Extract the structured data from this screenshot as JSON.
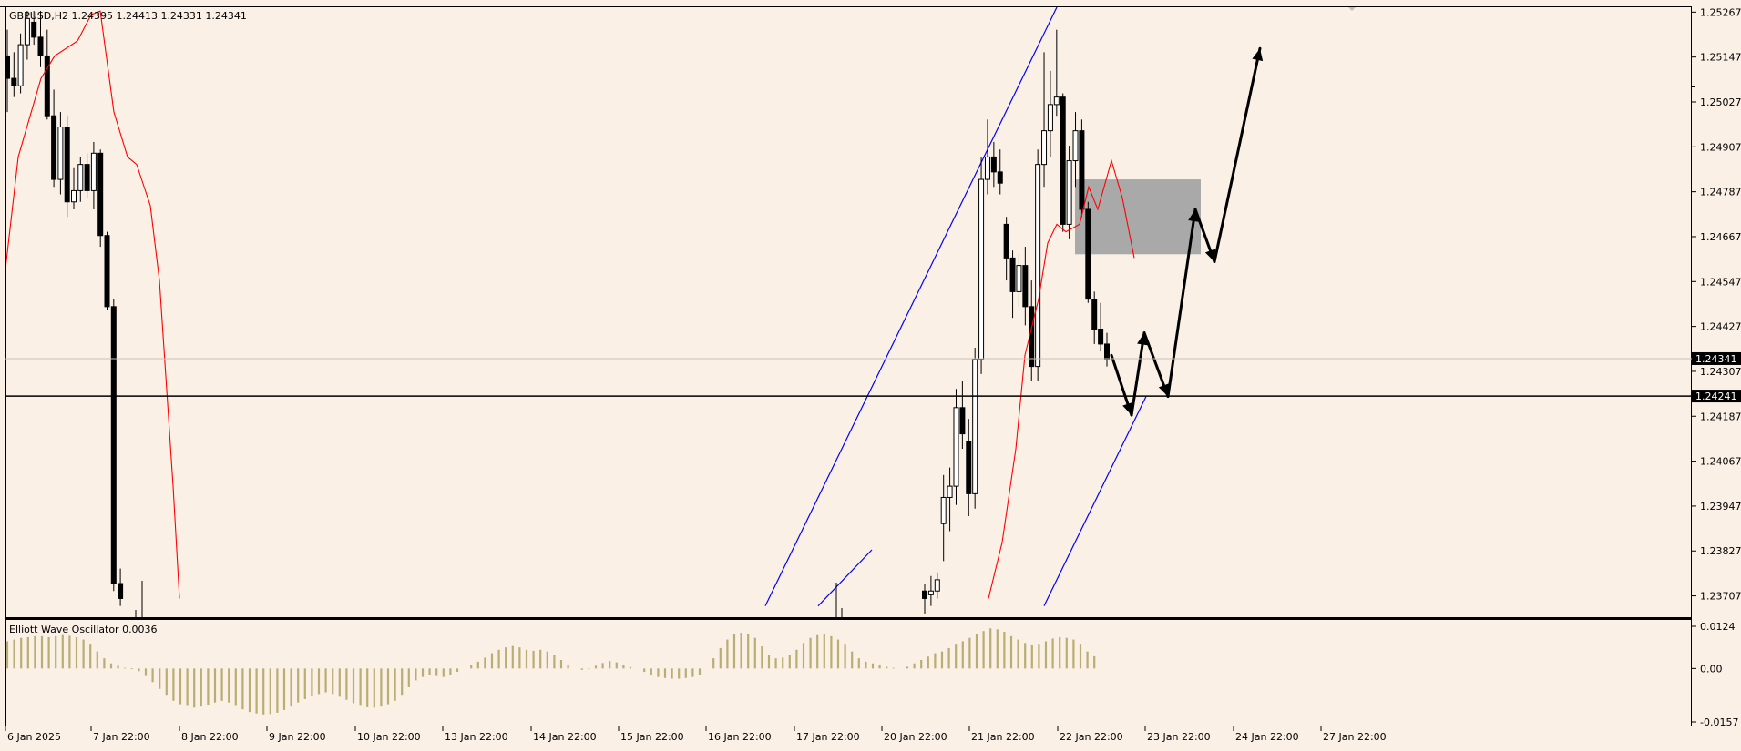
{
  "header": {
    "symbol_info": "GBPUSD,H2 1.24395 1.24413 1.24331 1.24341"
  },
  "indicator": {
    "label": "Elliott Wave Oscillator 0.0036"
  },
  "chart_data": [
    {
      "type": "candlestick",
      "symbol": "GBPUSD",
      "timeframe": "H2",
      "ohlc_last": {
        "open": 1.24395,
        "high": 1.24413,
        "low": 1.24331,
        "close": 1.24341
      },
      "y_ticks": [
        "1.25267",
        "1.25147",
        "1.25027",
        "1.24907",
        "1.24787",
        "1.24667",
        "1.24547",
        "1.24427",
        "1.24307",
        "1.24187",
        "1.24067",
        "1.23947",
        "1.23827",
        "1.23707"
      ],
      "ylim": [
        1.2365,
        1.2528
      ],
      "x_ticks": [
        "6 Jan 2025",
        "7 Jan 22:00",
        "8 Jan 22:00",
        "9 Jan 22:00",
        "10 Jan 22:00",
        "13 Jan 22:00",
        "14 Jan 22:00",
        "15 Jan 22:00",
        "16 Jan 22:00",
        "17 Jan 22:00",
        "20 Jan 22:00",
        "21 Jan 22:00",
        "22 Jan 22:00",
        "23 Jan 22:00",
        "24 Jan 22:00",
        "27 Jan 22:00"
      ],
      "price_labels": {
        "current": "1.24341",
        "horizontal_line": "1.24241"
      },
      "horizontal_line": 1.24241,
      "current_price": 1.24341,
      "candles": [
        [
          1.2515,
          1.2522,
          1.25,
          1.2509
        ],
        [
          1.2509,
          1.2516,
          1.2504,
          1.2507
        ],
        [
          1.2507,
          1.2521,
          1.2505,
          1.2518
        ],
        [
          1.2518,
          1.2527,
          1.2514,
          1.2525
        ],
        [
          1.2524,
          1.2527,
          1.2518,
          1.252
        ],
        [
          1.252,
          1.2527,
          1.2512,
          1.2515
        ],
        [
          1.2515,
          1.2522,
          1.2498,
          1.2499
        ],
        [
          1.2499,
          1.2506,
          1.248,
          1.2482
        ],
        [
          1.2482,
          1.25,
          1.2478,
          1.2496
        ],
        [
          1.2496,
          1.2499,
          1.2472,
          1.2476
        ],
        [
          1.2476,
          1.2485,
          1.2474,
          1.2479
        ],
        [
          1.2479,
          1.2488,
          1.2476,
          1.2486
        ],
        [
          1.2486,
          1.2489,
          1.2477,
          1.2479
        ],
        [
          1.2479,
          1.2492,
          1.2474,
          1.2489
        ],
        [
          1.2489,
          1.249,
          1.2464,
          1.2467
        ],
        [
          1.2467,
          1.2468,
          1.2447,
          1.2448
        ],
        [
          1.2448,
          1.245,
          1.2372,
          1.2374
        ],
        [
          1.2374,
          1.2378,
          1.2368,
          1.237
        ]
      ],
      "late_candles": [
        [
          1.2372,
          1.2374,
          1.2366,
          1.237
        ],
        [
          1.2371,
          1.2376,
          1.2368,
          1.2372
        ],
        [
          1.2372,
          1.2377,
          1.237,
          1.2375
        ],
        [
          1.239,
          1.2403,
          1.238,
          1.2397
        ],
        [
          1.2397,
          1.2405,
          1.2388,
          1.24
        ],
        [
          1.24,
          1.2426,
          1.2395,
          1.2421
        ],
        [
          1.2421,
          1.2428,
          1.241,
          1.2414
        ],
        [
          1.2412,
          1.2418,
          1.2392,
          1.2398
        ],
        [
          1.2398,
          1.2437,
          1.2394,
          1.2434
        ],
        [
          1.2434,
          1.2488,
          1.243,
          1.2482
        ],
        [
          1.2482,
          1.2498,
          1.2478,
          1.2488
        ],
        [
          1.2488,
          1.2492,
          1.248,
          1.2484
        ],
        [
          1.2484,
          1.249,
          1.2478,
          1.2481
        ],
        [
          1.247,
          1.2472,
          1.2455,
          1.2461
        ],
        [
          1.2461,
          1.2463,
          1.2445,
          1.2452
        ],
        [
          1.2452,
          1.2462,
          1.2448,
          1.2459
        ],
        [
          1.2459,
          1.2464,
          1.2443,
          1.2448
        ],
        [
          1.2448,
          1.2455,
          1.2428,
          1.2432
        ],
        [
          1.2432,
          1.249,
          1.2428,
          1.2486
        ],
        [
          1.2486,
          1.2516,
          1.248,
          1.2495
        ],
        [
          1.2495,
          1.2511,
          1.2488,
          1.2502
        ],
        [
          1.2502,
          1.2522,
          1.2499,
          1.2504
        ],
        [
          1.2504,
          1.2505,
          1.2468,
          1.247
        ],
        [
          1.247,
          1.2491,
          1.2466,
          1.2487
        ],
        [
          1.2487,
          1.25,
          1.248,
          1.2495
        ],
        [
          1.2495,
          1.2498,
          1.2472,
          1.2474
        ],
        [
          1.2474,
          1.2476,
          1.2449,
          1.245
        ],
        [
          1.245,
          1.2452,
          1.2438,
          1.2442
        ],
        [
          1.2442,
          1.2449,
          1.2436,
          1.2438
        ],
        [
          1.2438,
          1.2441,
          1.2432,
          1.2434
        ]
      ],
      "moving_average": [
        [
          5,
          1.2456
        ],
        [
          20,
          1.2488
        ],
        [
          45,
          1.2509
        ],
        [
          60,
          1.2515
        ],
        [
          85,
          1.2519
        ],
        [
          100,
          1.2526
        ],
        [
          110,
          1.2527
        ],
        [
          125,
          1.25
        ],
        [
          140,
          1.2488
        ],
        [
          150,
          1.2486
        ],
        [
          165,
          1.2475
        ],
        [
          175,
          1.2455
        ],
        [
          190,
          1.24
        ],
        [
          197,
          1.237
        ],
        [
          1085,
          1.237
        ],
        [
          1100,
          1.2385
        ],
        [
          1115,
          1.241
        ],
        [
          1125,
          1.2435
        ],
        [
          1140,
          1.245
        ],
        [
          1150,
          1.2465
        ],
        [
          1160,
          1.247
        ],
        [
          1170,
          1.2468
        ],
        [
          1185,
          1.247
        ],
        [
          1195,
          1.248
        ],
        [
          1205,
          1.2474
        ],
        [
          1220,
          1.2487
        ],
        [
          1232,
          1.2477
        ],
        [
          1245,
          1.2461
        ]
      ],
      "trend_lines": [
        {
          "from": [
            840,
            1.2368
          ],
          "to": [
            1160,
            1.2528
          ],
          "color": "#0000ff"
        },
        {
          "from": [
            1146,
            1.2368
          ],
          "to": [
            1258,
            1.2424
          ],
          "color": "#0000ff"
        },
        {
          "from": [
            898,
            1.2368
          ],
          "to": [
            957,
            1.2383
          ],
          "color": "#0000ff"
        }
      ],
      "zone": {
        "x1": 1180,
        "x2": 1318,
        "top": 1.2482,
        "bottom": 1.2462,
        "color": "#a9a9a9"
      },
      "projection_path": [
        [
          1220,
          1.2435
        ],
        [
          1242,
          1.2419
        ],
        [
          1256,
          1.2441
        ],
        [
          1282,
          1.2424
        ],
        [
          1312,
          1.2474
        ],
        [
          1333,
          1.246
        ],
        [
          1383,
          1.2517
        ]
      ]
    },
    {
      "type": "bar",
      "name": "Elliott Wave Oscillator",
      "value": 0.0036,
      "y_ticks": [
        "0.0124",
        "0.00",
        "-0.0157"
      ],
      "ylim": [
        -0.0157,
        0.0124
      ],
      "color": "#b8ad72",
      "values": [
        0.008,
        0.0085,
        0.009,
        0.0092,
        0.0095,
        0.0095,
        0.0092,
        0.0095,
        0.0098,
        0.0096,
        0.0092,
        0.0085,
        0.007,
        0.005,
        0.003,
        0.0015,
        0.0008,
        0.0002,
        -0.0002,
        -0.0008,
        -0.0022,
        -0.004,
        -0.006,
        -0.008,
        -0.0095,
        -0.0105,
        -0.011,
        -0.0115,
        -0.0112,
        -0.0108,
        -0.01,
        -0.0095,
        -0.01,
        -0.011,
        -0.012,
        -0.0128,
        -0.0132,
        -0.0135,
        -0.0134,
        -0.013,
        -0.0122,
        -0.0112,
        -0.01,
        -0.009,
        -0.0082,
        -0.0075,
        -0.007,
        -0.0075,
        -0.0083,
        -0.0092,
        -0.0102,
        -0.011,
        -0.0114,
        -0.0115,
        -0.0112,
        -0.0105,
        -0.0095,
        -0.008,
        -0.0055,
        -0.0035,
        -0.0025,
        -0.002,
        -0.0022,
        -0.0025,
        -0.002,
        -0.001,
        0.0,
        0.001,
        0.002,
        0.0032,
        0.0045,
        0.0055,
        0.0062,
        0.0066,
        0.0062,
        0.0055,
        0.0052,
        0.0055,
        0.005,
        0.004,
        0.0025,
        0.001,
        0.0,
        -0.0004,
        -0.0002,
        0.0008,
        0.0016,
        0.0022,
        0.0018,
        0.001,
        0.0004,
        0.0,
        -0.001,
        -0.002,
        -0.0025,
        -0.0028,
        -0.003,
        -0.003,
        -0.0028,
        -0.0025,
        -0.002,
        0.0,
        0.003,
        0.006,
        0.0085,
        0.01,
        0.0105,
        0.01,
        0.009,
        0.0065,
        0.004,
        0.003,
        0.0032,
        0.004,
        0.0055,
        0.0075,
        0.009,
        0.0098,
        0.01,
        0.0095,
        0.0085,
        0.007,
        0.005,
        0.003,
        0.002,
        0.0015,
        0.001,
        0.0005,
        0.0002,
        0.0,
        0.0005,
        0.0015,
        0.0025,
        0.0035,
        0.0045,
        0.005,
        0.006,
        0.007,
        0.008,
        0.009,
        0.01,
        0.011,
        0.0118,
        0.0115,
        0.0108,
        0.0095,
        0.0085,
        0.0075,
        0.0068,
        0.007,
        0.008,
        0.0088,
        0.0092,
        0.009,
        0.0085,
        0.007,
        0.005,
        0.0036
      ]
    }
  ]
}
